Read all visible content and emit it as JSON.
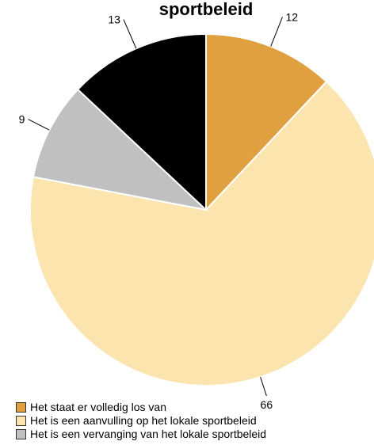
{
  "chart_data": {
    "type": "pie",
    "title": "sportbeleid",
    "slices": [
      {
        "label": "Het staat er volledig los van",
        "value": 12,
        "color": "#e0a040"
      },
      {
        "label": "Het is een aanvulling op het lokale sportbeleid",
        "value": 66,
        "color": "#fbe4ae"
      },
      {
        "label": "Het is een vervanging van het lokale sportbeleid",
        "value": 9,
        "color": "#c0c0c0"
      },
      {
        "label": "",
        "value": 13,
        "color": "#000000"
      }
    ],
    "start_angle": "12 o'clock",
    "direction": "clockwise",
    "legend_position": "bottom-left"
  }
}
